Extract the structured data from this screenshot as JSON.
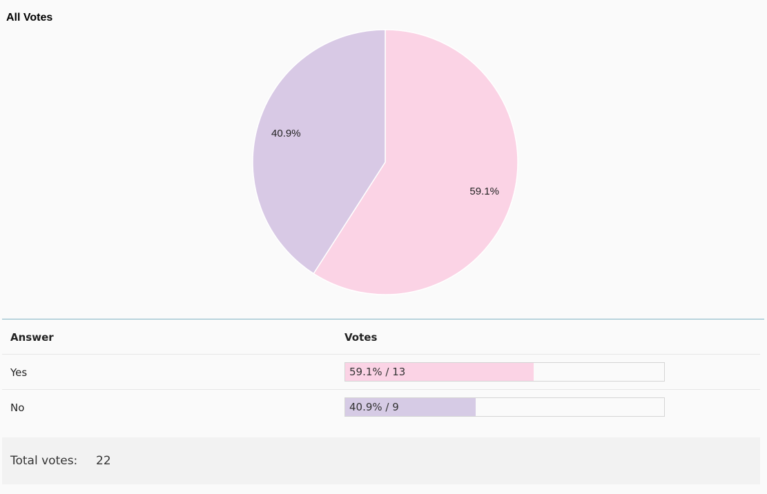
{
  "chart_data": {
    "type": "pie",
    "title": "All Votes",
    "slices": [
      {
        "label": "Yes",
        "value": 13,
        "percent": 59.1,
        "percent_label": "59.1%",
        "color": "#fbd3e5"
      },
      {
        "label": "No",
        "value": 9,
        "percent": 40.9,
        "percent_label": "40.9%",
        "color": "#d8c9e5"
      }
    ],
    "start_angle_deg": 0,
    "direction": "clockwise"
  },
  "results": {
    "headers": {
      "answer": "Answer",
      "votes": "Votes"
    },
    "rows": [
      {
        "answer": "Yes",
        "bar_text": "59.1% / 13",
        "fraction": 0.591,
        "color": "#fbd3e5"
      },
      {
        "answer": "No",
        "bar_text": "40.9% / 9",
        "fraction": 0.409,
        "color": "#d6cbe5"
      }
    ]
  },
  "total": {
    "label": "Total votes:",
    "value": "22"
  }
}
